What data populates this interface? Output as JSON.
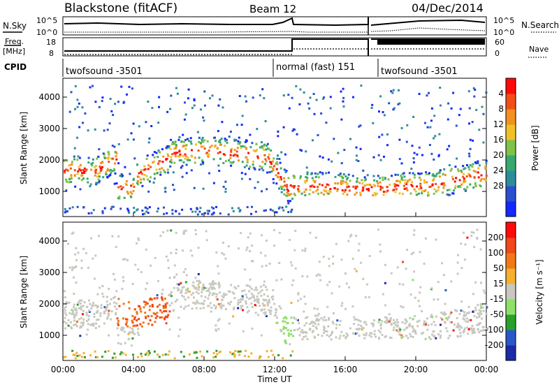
{
  "header": {
    "station": "Blackstone (fitACF)",
    "beam": "Beam 12",
    "date": "04/Dec/2014"
  },
  "status_panels": {
    "nsky_label": "N.Sky",
    "nsky_ticks": [
      "10^5",
      "10^0"
    ],
    "nsearch_label": "N.Search",
    "freq_label_line1": "Freq.",
    "freq_label_line2": "[MHz]",
    "freq_ticks": [
      "18",
      "8"
    ],
    "nave_ticks": [
      "60",
      "0"
    ],
    "nave_label": "Nave",
    "cpid_label": "CPID"
  },
  "cpid_segments": [
    {
      "start_hour": 0.0,
      "end_hour": 12.0,
      "label": "twofsound -3501"
    },
    {
      "start_hour": 12.0,
      "end_hour": 17.6,
      "label": "normal (fast) 151"
    },
    {
      "start_hour": 17.6,
      "end_hour": 24.0,
      "label": "twofsound -3501"
    }
  ],
  "chart_data": [
    {
      "type": "heatmap",
      "quantity": "Power",
      "ylabel": "Slant Range [km]",
      "xlabel": "Time UT",
      "xlim": [
        0,
        24
      ],
      "ylim": [
        200,
        4600
      ],
      "yticks": [
        1000,
        2000,
        3000,
        4000
      ],
      "xticks": [
        "00:00",
        "04:00",
        "08:00",
        "12:00",
        "16:00",
        "20:00",
        "00:00"
      ],
      "colorbar": {
        "label": "Power [dB]",
        "ticks": [
          "4",
          "8",
          "12",
          "16",
          "20",
          "24",
          "28"
        ],
        "colors": [
          "#1428ff",
          "#2a4fd0",
          "#2e8c9a",
          "#37a86e",
          "#7fc24a",
          "#f0c028",
          "#f39020",
          "#f05018",
          "#ff0a0a"
        ]
      }
    },
    {
      "type": "heatmap",
      "quantity": "Velocity",
      "ylabel": "Slant Range [km]",
      "xlabel": "Time UT",
      "xlim": [
        0,
        24
      ],
      "ylim": [
        200,
        4600
      ],
      "yticks": [
        1000,
        2000,
        3000,
        4000
      ],
      "xticks": [
        "00:00",
        "04:00",
        "08:00",
        "12:00",
        "16:00",
        "20:00",
        "00:00"
      ],
      "colorbar": {
        "label": "Velocity [m s⁻¹]",
        "ticks": [
          "200",
          "100",
          "50",
          "15",
          "-15",
          "-50",
          "-100",
          "-200"
        ],
        "colors": [
          "#1c2aa8",
          "#2a57c8",
          "#2aa02a",
          "#8ee06a",
          "#c8c8c0",
          "#f5b030",
          "#f07818",
          "#f04818",
          "#ff0a0a"
        ]
      }
    }
  ],
  "time_axis_label": "Time UT"
}
